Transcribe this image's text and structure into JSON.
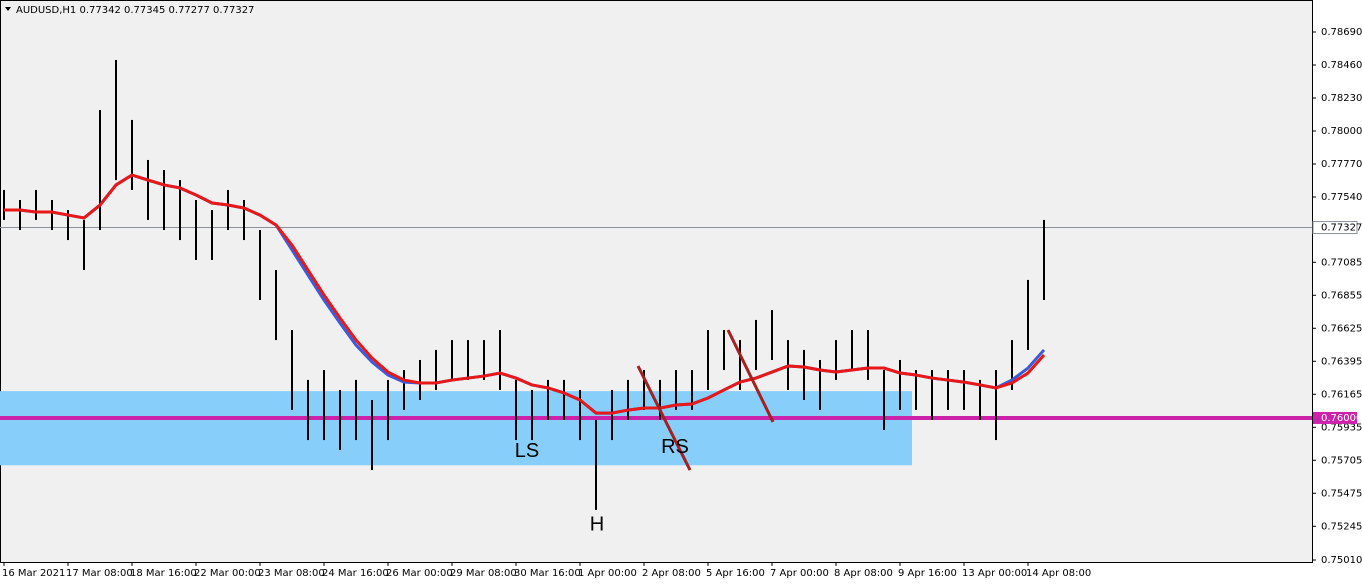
{
  "chart_data": {
    "type": "hilo",
    "title": "AUDUSD,H1  0.77342 0.77345 0.77277 0.77327",
    "xlim": [
      -2,
      654
    ],
    "ylim": [
      0.74996,
      0.78913
    ],
    "xticks": [
      {
        "value": 0,
        "label": "16 Mar 2021"
      },
      {
        "value": 32,
        "label": "17 Mar 08:00"
      },
      {
        "value": 64,
        "label": "18 Mar 16:00"
      },
      {
        "value": 96,
        "label": "22 Mar 00:00"
      },
      {
        "value": 128,
        "label": "23 Mar 08:00"
      },
      {
        "value": 160,
        "label": "24 Mar 16:00"
      },
      {
        "value": 192,
        "label": "26 Mar 00:00"
      },
      {
        "value": 224,
        "label": "29 Mar 08:00"
      },
      {
        "value": 256,
        "label": "30 Mar 16:00"
      },
      {
        "value": 288,
        "label": "1 Apr 00:00"
      },
      {
        "value": 320,
        "label": "2 Apr 08:00"
      },
      {
        "value": 352,
        "label": "5 Apr 16:00"
      },
      {
        "value": 384,
        "label": "7 Apr 00:00"
      },
      {
        "value": 416,
        "label": "8 Apr 08:00"
      },
      {
        "value": 448,
        "label": "9 Apr 16:00"
      },
      {
        "value": 480,
        "label": "13 Apr 00:00"
      },
      {
        "value": 512,
        "label": "14 Apr 08:00"
      }
    ],
    "yticks": [
      {
        "value": 0.7869,
        "label": "0.78690"
      },
      {
        "value": 0.7846,
        "label": "0.78460"
      },
      {
        "value": 0.7823,
        "label": "0.78230"
      },
      {
        "value": 0.78,
        "label": "0.78000"
      },
      {
        "value": 0.7777,
        "label": "0.77770"
      },
      {
        "value": 0.7754,
        "label": "0.77540"
      },
      {
        "value": 0.77085,
        "label": "0.77085"
      },
      {
        "value": 0.76855,
        "label": "0.76855"
      },
      {
        "value": 0.76625,
        "label": "0.76625"
      },
      {
        "value": 0.76395,
        "label": "0.76395"
      },
      {
        "value": 0.76165,
        "label": "0.76165"
      },
      {
        "value": 0.75935,
        "label": "0.75935"
      },
      {
        "value": 0.75705,
        "label": "0.75705"
      },
      {
        "value": 0.75475,
        "label": "0.75475"
      },
      {
        "value": 0.75245,
        "label": "0.75245"
      },
      {
        "value": 0.7501,
        "label": "0.75010"
      }
    ],
    "color": "#000000",
    "x": [
      0,
      8,
      16,
      24,
      32,
      40,
      48,
      56,
      64,
      72,
      80,
      88,
      96,
      104,
      112,
      120,
      128,
      136,
      144,
      152,
      160,
      168,
      176,
      184,
      192,
      200,
      208,
      216,
      224,
      232,
      240,
      248,
      256,
      264,
      272,
      280,
      288,
      296,
      304,
      312,
      320,
      328,
      336,
      344,
      352,
      360,
      368,
      376,
      384,
      392,
      400,
      408,
      416,
      424,
      432,
      440,
      448,
      456,
      464,
      472,
      480,
      488,
      496,
      504,
      512,
      520
    ],
    "high": [
      0.77589,
      0.77519,
      0.77589,
      0.77519,
      0.77449,
      0.7738,
      0.78146,
      0.78495,
      0.78077,
      0.77798,
      0.77728,
      0.77658,
      0.77519,
      0.77449,
      0.77589,
      0.77519,
      0.7731,
      0.77031,
      0.76613,
      0.76265,
      0.76334,
      0.76195,
      0.76265,
      0.76125,
      0.76265,
      0.76334,
      0.76404,
      0.76474,
      0.76543,
      0.76543,
      0.76543,
      0.76613,
      0.76265,
      0.76195,
      0.76265,
      0.76265,
      0.76195,
      0.75986,
      0.76195,
      0.76265,
      0.76334,
      0.76265,
      0.76334,
      0.76334,
      0.76613,
      0.76613,
      0.76543,
      0.76683,
      0.76752,
      0.76543,
      0.76474,
      0.76404,
      0.76543,
      0.76613,
      0.76613,
      0.76334,
      0.76404,
      0.76334,
      0.76334,
      0.76334,
      0.76334,
      0.76265,
      0.76334,
      0.76543,
      0.76962,
      0.7738
    ],
    "low": [
      0.7738,
      0.7731,
      0.7738,
      0.7731,
      0.7724,
      0.77031,
      0.7731,
      0.77658,
      0.77589,
      0.7738,
      0.7731,
      0.7724,
      0.77101,
      0.77101,
      0.7731,
      0.7724,
      0.76822,
      0.76543,
      0.76056,
      0.75846,
      0.75846,
      0.75777,
      0.75846,
      0.75637,
      0.75846,
      0.76056,
      0.76125,
      0.76195,
      0.76265,
      0.76265,
      0.76265,
      0.76195,
      0.75846,
      0.75846,
      0.75986,
      0.75986,
      0.75846,
      0.75359,
      0.75846,
      0.75986,
      0.76056,
      0.75986,
      0.76056,
      0.76056,
      0.76195,
      0.76334,
      0.76195,
      0.76334,
      0.76404,
      0.76195,
      0.76125,
      0.76056,
      0.76265,
      0.76334,
      0.76265,
      0.75916,
      0.76056,
      0.76056,
      0.75986,
      0.76056,
      0.76056,
      0.75986,
      0.75846,
      0.76195,
      0.76474,
      0.76822
    ],
    "lines": [
      {
        "color": "#3b5bdb",
        "values": [
          0.77449,
          0.77449,
          0.77435,
          0.77435,
          0.77414,
          0.77394,
          0.77484,
          0.77624,
          0.77693,
          0.77658,
          0.77624,
          0.77603,
          0.77554,
          0.77498,
          0.77484,
          0.77463,
          0.77414,
          0.77345,
          0.77171,
          0.76996,
          0.76822,
          0.76662,
          0.76508,
          0.7639,
          0.76299,
          0.7625,
          0.76244,
          0.76244,
          0.76264,
          0.76278,
          0.76292,
          0.76313,
          0.76278,
          0.7623,
          0.76209,
          0.76174,
          0.76125,
          0.76034,
          0.76034,
          0.76055,
          0.76069,
          0.76069,
          0.7609,
          0.76097,
          0.76139,
          0.76195,
          0.7625,
          0.76278,
          0.7632,
          0.76362,
          0.76355,
          0.76334,
          0.7632,
          0.76334,
          0.76348,
          0.76348,
          0.76313,
          0.76299,
          0.76278,
          0.76264,
          0.7625,
          0.7623,
          0.76209,
          0.76265,
          0.76348,
          0.76474
        ]
      },
      {
        "color": "#e81818",
        "values": [
          0.77449,
          0.77449,
          0.77435,
          0.77435,
          0.77414,
          0.77394,
          0.77484,
          0.77624,
          0.77693,
          0.77658,
          0.77624,
          0.77603,
          0.77554,
          0.77498,
          0.77484,
          0.77463,
          0.77414,
          0.77345,
          0.77205,
          0.77031,
          0.76857,
          0.76697,
          0.76543,
          0.76418,
          0.7632,
          0.76264,
          0.76244,
          0.76244,
          0.76264,
          0.76278,
          0.76292,
          0.76313,
          0.76278,
          0.7623,
          0.76209,
          0.76174,
          0.76125,
          0.76034,
          0.76034,
          0.76055,
          0.76069,
          0.76069,
          0.7609,
          0.76097,
          0.76139,
          0.76195,
          0.7625,
          0.76278,
          0.7632,
          0.76362,
          0.76355,
          0.76334,
          0.7632,
          0.76334,
          0.76348,
          0.76348,
          0.76313,
          0.76299,
          0.76278,
          0.76264,
          0.7625,
          0.7623,
          0.76209,
          0.76244,
          0.76313,
          0.76439
        ]
      }
    ],
    "zone": {
      "x": [
        -2,
        454
      ],
      "y": [
        0.7567,
        0.76187
      ],
      "color": "#87cefa"
    },
    "level": {
      "value": 0.76,
      "label": "0.76000",
      "color": "#cc22aa"
    },
    "current_price": {
      "value": 0.77327,
      "label": "0.77327",
      "color": "#8a8f99"
    },
    "trendlines": [
      {
        "x": [
          317,
          343
        ],
        "y": [
          0.76362,
          0.75637
        ],
        "color": "#a52020"
      },
      {
        "x": [
          362,
          384.5
        ],
        "y": [
          0.76613,
          0.75972
        ],
        "color": "#a52020"
      }
    ],
    "annotations": [
      {
        "text": "LS",
        "x": 261.5,
        "y": 0.75763
      },
      {
        "text": "H",
        "x": 296.5,
        "y": 0.75254
      },
      {
        "text": "RS",
        "x": 335.5,
        "y": 0.75791
      }
    ]
  }
}
